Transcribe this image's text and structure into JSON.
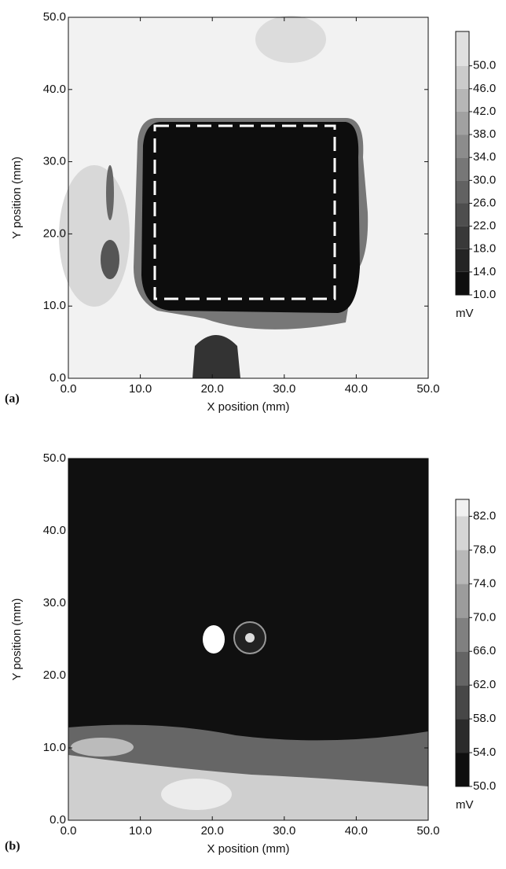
{
  "chart_data": [
    {
      "type": "contour",
      "panel_label": "(a)",
      "xlabel": "X position (mm)",
      "ylabel": "Y position (mm)",
      "xlim": [
        0,
        50
      ],
      "ylim": [
        0,
        50
      ],
      "xticks": [
        {
          "value": 0,
          "label": "0.0"
        },
        {
          "value": 10,
          "label": "10.0"
        },
        {
          "value": 20,
          "label": "20.0"
        },
        {
          "value": 30,
          "label": "30.0"
        },
        {
          "value": 40,
          "label": "40.0"
        },
        {
          "value": 50,
          "label": "50.0"
        }
      ],
      "yticks": [
        {
          "value": 0,
          "label": "0.0"
        },
        {
          "value": 10,
          "label": "10.0"
        },
        {
          "value": 20,
          "label": "20.0"
        },
        {
          "value": 30,
          "label": "30.0"
        },
        {
          "value": 40,
          "label": "40.0"
        },
        {
          "value": 50,
          "label": "50.0"
        }
      ],
      "colorbar_unit": "mV",
      "clim": [
        10,
        56
      ],
      "colorbar_ticks": [
        {
          "value": 10,
          "label": "10.0"
        },
        {
          "value": 14,
          "label": "14.0"
        },
        {
          "value": 18,
          "label": "18.0"
        },
        {
          "value": 22,
          "label": "22.0"
        },
        {
          "value": 26,
          "label": "26.0"
        },
        {
          "value": 30,
          "label": "30.0"
        },
        {
          "value": 34,
          "label": "34.0"
        },
        {
          "value": 38,
          "label": "38.0"
        },
        {
          "value": 42,
          "label": "42.0"
        },
        {
          "value": 46,
          "label": "46.0"
        },
        {
          "value": 50,
          "label": "50.0"
        }
      ]
    },
    {
      "type": "contour",
      "panel_label": "(b)",
      "xlabel": "X position (mm)",
      "ylabel": "Y position (mm)",
      "xlim": [
        0,
        50
      ],
      "ylim": [
        0,
        50
      ],
      "xticks": [
        {
          "value": 0,
          "label": "0.0"
        },
        {
          "value": 10,
          "label": "10.0"
        },
        {
          "value": 20,
          "label": "20.0"
        },
        {
          "value": 30,
          "label": "30.0"
        },
        {
          "value": 40,
          "label": "40.0"
        },
        {
          "value": 50,
          "label": "50.0"
        }
      ],
      "yticks": [
        {
          "value": 0,
          "label": "0.0"
        },
        {
          "value": 10,
          "label": "10.0"
        },
        {
          "value": 20,
          "label": "20.0"
        },
        {
          "value": 30,
          "label": "30.0"
        },
        {
          "value": 40,
          "label": "40.0"
        },
        {
          "value": 50,
          "label": "50.0"
        }
      ],
      "colorbar_unit": "mV",
      "clim": [
        50,
        84
      ],
      "colorbar_ticks": [
        {
          "value": 50,
          "label": "50.0"
        },
        {
          "value": 54,
          "label": "54.0"
        },
        {
          "value": 58,
          "label": "58.0"
        },
        {
          "value": 62,
          "label": "62.0"
        },
        {
          "value": 66,
          "label": "66.0"
        },
        {
          "value": 70,
          "label": "70.0"
        },
        {
          "value": 74,
          "label": "74.0"
        },
        {
          "value": 78,
          "label": "78.0"
        },
        {
          "value": 82,
          "label": "82.0"
        }
      ]
    }
  ]
}
